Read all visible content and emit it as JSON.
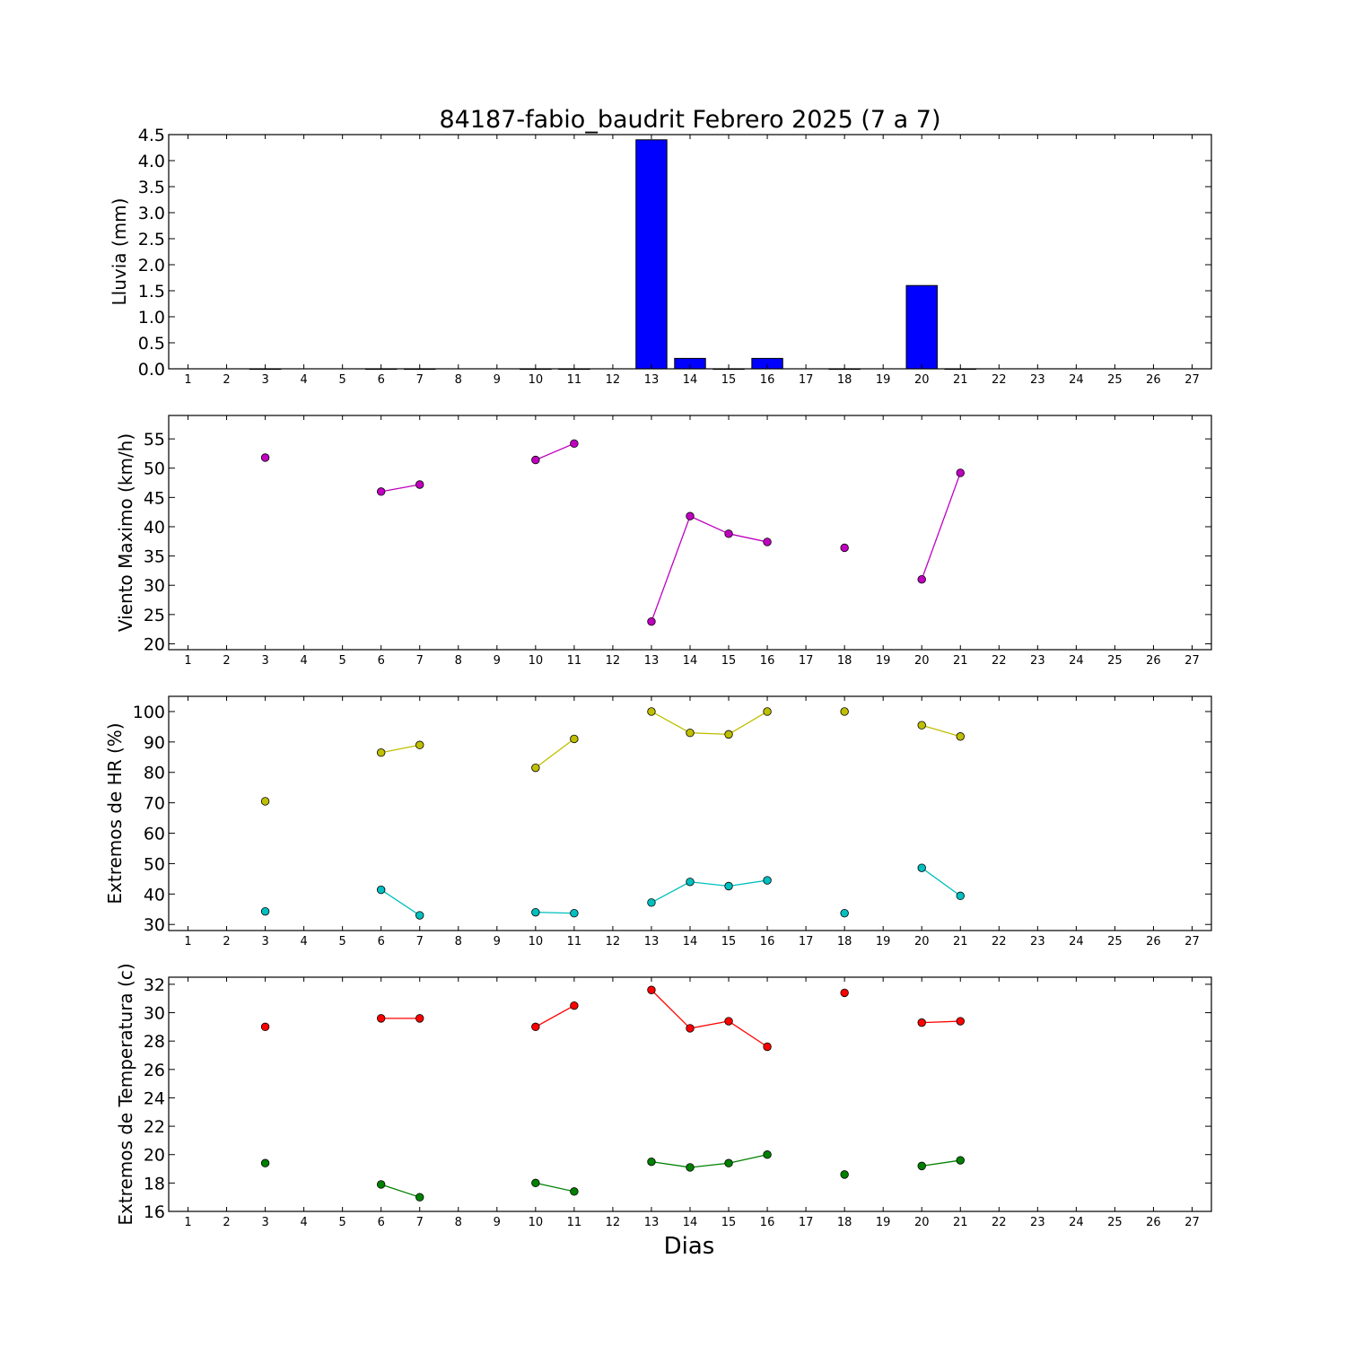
{
  "title": "84187-fabio_baudrit Febrero 2025  (7 a 7)",
  "xlabel": "Dias",
  "chart_data": [
    {
      "type": "bar",
      "ylabel": "Lluvia (mm)",
      "ylim": [
        0,
        4.5
      ],
      "yticks": [
        "0.0",
        "0.5",
        "1.0",
        "1.5",
        "2.0",
        "2.5",
        "3.0",
        "3.5",
        "4.0",
        "4.5"
      ],
      "ytick_values": [
        0,
        0.5,
        1,
        1.5,
        2,
        2.5,
        3,
        3.5,
        4,
        4.5
      ],
      "xticks": [
        "1",
        "2",
        "3",
        "4",
        "5",
        "6",
        "7",
        "8",
        "9",
        "10",
        "11",
        "12",
        "13",
        "14",
        "15",
        "16",
        "17",
        "18",
        "19",
        "20",
        "21",
        "22",
        "23",
        "24",
        "25",
        "26",
        "27"
      ],
      "xlim": [
        0.5,
        27.5
      ],
      "color": "#0000ff",
      "series": [
        {
          "x": [
            3,
            6,
            7,
            10,
            11,
            13,
            14,
            15,
            16,
            18,
            20,
            21
          ],
          "values": [
            0,
            0,
            0,
            0,
            0,
            4.4,
            0.2,
            0,
            0.2,
            0,
            1.6,
            0
          ]
        }
      ]
    },
    {
      "type": "line",
      "ylabel": "Viento Maximo (km/h)",
      "ylim": [
        19,
        59
      ],
      "yticks": [
        "20",
        "25",
        "30",
        "35",
        "40",
        "45",
        "50",
        "55"
      ],
      "ytick_values": [
        20,
        25,
        30,
        35,
        40,
        45,
        50,
        55
      ],
      "xticks": [
        "1",
        "2",
        "3",
        "4",
        "5",
        "6",
        "7",
        "8",
        "9",
        "10",
        "11",
        "12",
        "13",
        "14",
        "15",
        "16",
        "17",
        "18",
        "19",
        "20",
        "21",
        "22",
        "23",
        "24",
        "25",
        "26",
        "27"
      ],
      "xlim": [
        0.5,
        27.5
      ],
      "series": [
        {
          "color": "#bf00bf",
          "x": [
            3,
            6,
            7,
            10,
            11,
            13,
            14,
            15,
            16,
            18,
            20,
            21
          ],
          "values": [
            51.8,
            46,
            47.2,
            51.4,
            54.2,
            23.8,
            41.8,
            38.8,
            37.4,
            36.4,
            31,
            49.2
          ]
        }
      ]
    },
    {
      "type": "line",
      "ylabel": "Extremos de HR (%)",
      "ylim": [
        28,
        105
      ],
      "yticks": [
        "30",
        "40",
        "50",
        "60",
        "70",
        "80",
        "90",
        "100"
      ],
      "ytick_values": [
        30,
        40,
        50,
        60,
        70,
        80,
        90,
        100
      ],
      "xticks": [
        "1",
        "2",
        "3",
        "4",
        "5",
        "6",
        "7",
        "8",
        "9",
        "10",
        "11",
        "12",
        "13",
        "14",
        "15",
        "16",
        "17",
        "18",
        "19",
        "20",
        "21",
        "22",
        "23",
        "24",
        "25",
        "26",
        "27"
      ],
      "xlim": [
        0.5,
        27.5
      ],
      "series": [
        {
          "color": "#bfbf00",
          "x": [
            3,
            6,
            7,
            10,
            11,
            13,
            14,
            15,
            16,
            18,
            20,
            21
          ],
          "values": [
            70.5,
            86.5,
            89,
            81.5,
            91,
            100,
            93,
            92.5,
            100,
            100,
            95.5,
            91.8
          ]
        },
        {
          "color": "#00bfbf",
          "x": [
            3,
            6,
            7,
            10,
            11,
            13,
            14,
            15,
            16,
            18,
            20,
            21
          ],
          "values": [
            34.3,
            41.4,
            33,
            34,
            33.7,
            37.2,
            44,
            42.6,
            44.5,
            33.7,
            48.6,
            39.4
          ]
        }
      ]
    },
    {
      "type": "line",
      "ylabel": "Extremos de Temperatura (c)",
      "ylim": [
        16,
        32.5
      ],
      "yticks": [
        "16",
        "18",
        "20",
        "22",
        "24",
        "26",
        "28",
        "30",
        "32"
      ],
      "ytick_values": [
        16,
        18,
        20,
        22,
        24,
        26,
        28,
        30,
        32
      ],
      "xticks": [
        "1",
        "2",
        "3",
        "4",
        "5",
        "6",
        "7",
        "8",
        "9",
        "10",
        "11",
        "12",
        "13",
        "14",
        "15",
        "16",
        "17",
        "18",
        "19",
        "20",
        "21",
        "22",
        "23",
        "24",
        "25",
        "26",
        "27"
      ],
      "xlim": [
        0.5,
        27.5
      ],
      "series": [
        {
          "color": "#ff0000",
          "x": [
            3,
            6,
            7,
            10,
            11,
            13,
            14,
            15,
            16,
            18,
            20,
            21
          ],
          "values": [
            29,
            29.6,
            29.6,
            29,
            30.5,
            31.6,
            28.9,
            29.4,
            27.6,
            31.4,
            29.3,
            29.4
          ]
        },
        {
          "color": "#008000",
          "x": [
            3,
            6,
            7,
            10,
            11,
            13,
            14,
            15,
            16,
            18,
            20,
            21
          ],
          "values": [
            19.4,
            17.9,
            17,
            18,
            17.4,
            19.5,
            19.1,
            19.4,
            20,
            18.6,
            19.2,
            19.6
          ]
        }
      ]
    }
  ]
}
